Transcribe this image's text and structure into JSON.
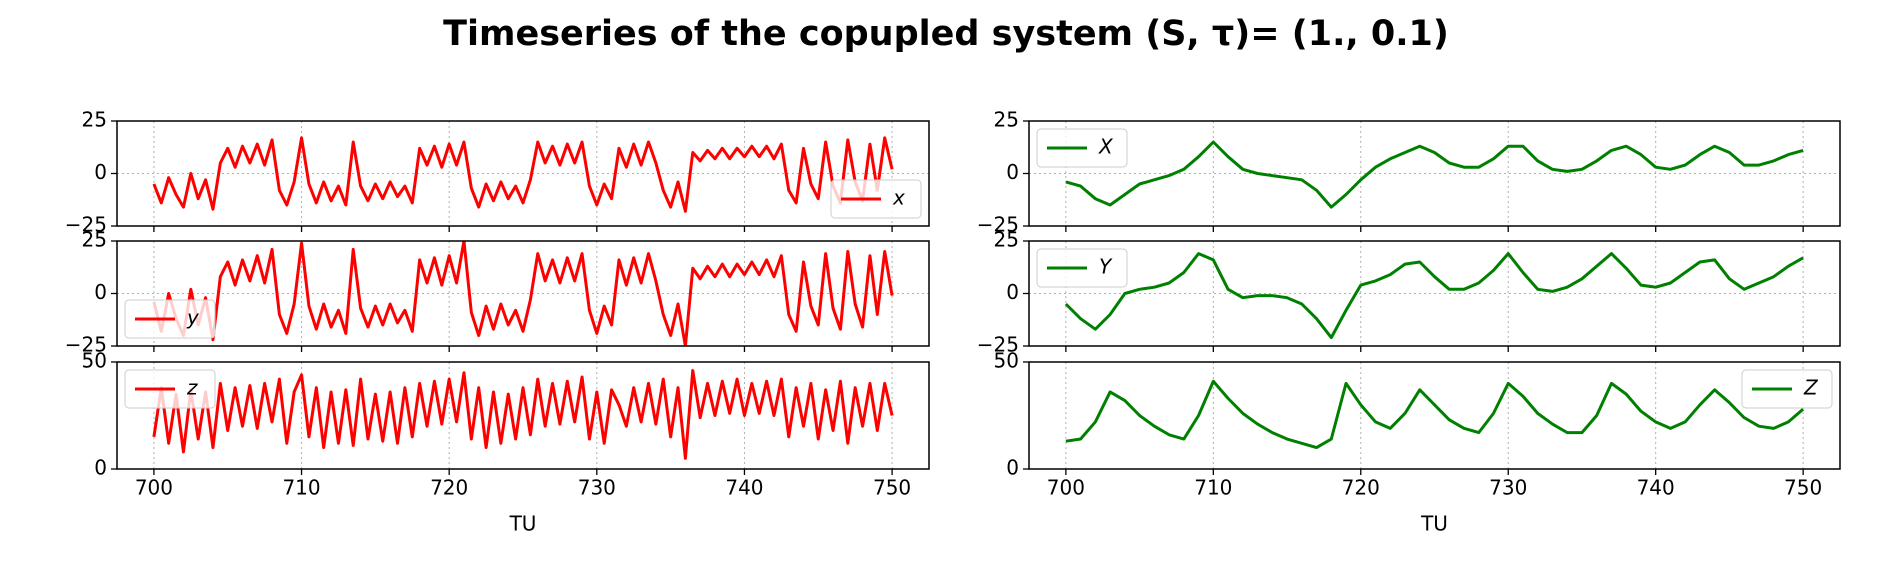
{
  "title": "Timeseries of the copupled system (S, τ)= (1., 0.1)",
  "chart_data": [
    {
      "type": "line",
      "legend": "lower right",
      "grid": true,
      "xlim": [
        697.5,
        752.5
      ],
      "ylim": [
        -25,
        25
      ],
      "yticks": [
        {
          "value": -25,
          "label": "−25"
        },
        0,
        25
      ],
      "x": [
        700,
        700.5,
        701,
        701.5,
        702,
        702.5,
        703,
        703.5,
        704,
        704.5,
        705,
        705.5,
        706,
        706.5,
        707,
        707.5,
        708,
        708.5,
        709,
        709.5,
        710,
        710.5,
        711,
        711.5,
        712,
        712.5,
        713,
        713.5,
        714,
        714.5,
        715,
        715.5,
        716,
        716.5,
        717,
        717.5,
        718,
        718.5,
        719,
        719.5,
        720,
        720.5,
        721,
        721.5,
        722,
        722.5,
        723,
        723.5,
        724,
        724.5,
        725,
        725.5,
        726,
        726.5,
        727,
        727.5,
        728,
        728.5,
        729,
        729.5,
        730,
        730.5,
        731,
        731.5,
        732,
        732.5,
        733,
        733.5,
        734,
        734.5,
        735,
        735.5,
        736,
        736.5,
        737,
        737.5,
        738,
        738.5,
        739,
        739.5,
        740,
        740.5,
        741,
        741.5,
        742,
        742.5,
        743,
        743.5,
        744,
        744.5,
        745,
        745.5,
        746,
        746.5,
        747,
        747.5,
        748,
        748.5,
        749,
        749.5,
        750
      ],
      "series": [
        {
          "name": "x",
          "color": "#ff0000",
          "values": [
            -5,
            -14,
            -2,
            -10,
            -16,
            0,
            -12,
            -3,
            -17,
            5,
            12,
            3,
            13,
            5,
            14,
            4,
            16,
            -8,
            -15,
            -4,
            17,
            -5,
            -14,
            -4,
            -13,
            -6,
            -15,
            15,
            -6,
            -13,
            -5,
            -12,
            -4,
            -11,
            -6,
            -14,
            12,
            4,
            13,
            3,
            14,
            4,
            15,
            -7,
            -16,
            -5,
            -13,
            -4,
            -12,
            -6,
            -14,
            -3,
            15,
            5,
            13,
            4,
            14,
            5,
            15,
            -6,
            -15,
            -5,
            -12,
            12,
            3,
            14,
            4,
            15,
            5,
            -8,
            -16,
            -4,
            -18,
            10,
            6,
            11,
            7,
            12,
            7,
            12,
            8,
            13,
            8,
            13,
            7,
            14,
            -8,
            -14,
            12,
            -5,
            -12,
            15,
            -6,
            -14,
            16,
            -4,
            -13,
            14,
            -8,
            17,
            2
          ]
        }
      ]
    },
    {
      "type": "line",
      "legend": "lower left",
      "grid": true,
      "xlim": [
        697.5,
        752.5
      ],
      "ylim": [
        -25,
        25
      ],
      "yticks": [
        {
          "value": -25,
          "label": "−25"
        },
        0,
        25
      ],
      "x": [
        700,
        700.5,
        701,
        701.5,
        702,
        702.5,
        703,
        703.5,
        704,
        704.5,
        705,
        705.5,
        706,
        706.5,
        707,
        707.5,
        708,
        708.5,
        709,
        709.5,
        710,
        710.5,
        711,
        711.5,
        712,
        712.5,
        713,
        713.5,
        714,
        714.5,
        715,
        715.5,
        716,
        716.5,
        717,
        717.5,
        718,
        718.5,
        719,
        719.5,
        720,
        720.5,
        721,
        721.5,
        722,
        722.5,
        723,
        723.5,
        724,
        724.5,
        725,
        725.5,
        726,
        726.5,
        727,
        727.5,
        728,
        728.5,
        729,
        729.5,
        730,
        730.5,
        731,
        731.5,
        732,
        732.5,
        733,
        733.5,
        734,
        734.5,
        735,
        735.5,
        736,
        736.5,
        737,
        737.5,
        738,
        738.5,
        739,
        739.5,
        740,
        740.5,
        741,
        741.5,
        742,
        742.5,
        743,
        743.5,
        744,
        744.5,
        745,
        745.5,
        746,
        746.5,
        747,
        747.5,
        748,
        748.5,
        749,
        749.5,
        750
      ],
      "series": [
        {
          "name": "y",
          "color": "#ff0000",
          "values": [
            -4,
            -18,
            0,
            -12,
            -20,
            2,
            -15,
            -2,
            -22,
            8,
            15,
            4,
            16,
            6,
            18,
            5,
            21,
            -10,
            -19,
            -5,
            24,
            -6,
            -17,
            -5,
            -16,
            -8,
            -19,
            21,
            -7,
            -16,
            -6,
            -15,
            -5,
            -14,
            -8,
            -18,
            16,
            5,
            17,
            4,
            18,
            5,
            25,
            -9,
            -20,
            -6,
            -17,
            -5,
            -15,
            -8,
            -18,
            -3,
            19,
            6,
            16,
            5,
            17,
            6,
            19,
            -8,
            -19,
            -6,
            -15,
            16,
            4,
            17,
            5,
            19,
            6,
            -10,
            -20,
            -5,
            -25,
            12,
            7,
            13,
            8,
            14,
            8,
            14,
            9,
            15,
            9,
            16,
            8,
            18,
            -10,
            -18,
            15,
            -6,
            -15,
            19,
            -7,
            -17,
            20,
            -5,
            -16,
            18,
            -10,
            20,
            -1
          ]
        }
      ]
    },
    {
      "type": "line",
      "legend": "upper left",
      "grid": true,
      "xlim": [
        697.5,
        752.5
      ],
      "ylim": [
        0,
        50
      ],
      "yticks": [
        0,
        50
      ],
      "xticks": [
        700,
        710,
        720,
        730,
        740,
        750
      ],
      "xlabel": "TU",
      "x": [
        700,
        700.5,
        701,
        701.5,
        702,
        702.5,
        703,
        703.5,
        704,
        704.5,
        705,
        705.5,
        706,
        706.5,
        707,
        707.5,
        708,
        708.5,
        709,
        709.5,
        710,
        710.5,
        711,
        711.5,
        712,
        712.5,
        713,
        713.5,
        714,
        714.5,
        715,
        715.5,
        716,
        716.5,
        717,
        717.5,
        718,
        718.5,
        719,
        719.5,
        720,
        720.5,
        721,
        721.5,
        722,
        722.5,
        723,
        723.5,
        724,
        724.5,
        725,
        725.5,
        726,
        726.5,
        727,
        727.5,
        728,
        728.5,
        729,
        729.5,
        730,
        730.5,
        731,
        731.5,
        732,
        732.5,
        733,
        733.5,
        734,
        734.5,
        735,
        735.5,
        736,
        736.5,
        737,
        737.5,
        738,
        738.5,
        739,
        739.5,
        740,
        740.5,
        741,
        741.5,
        742,
        742.5,
        743,
        743.5,
        744,
        744.5,
        745,
        745.5,
        746,
        746.5,
        747,
        747.5,
        748,
        748.5,
        749,
        749.5,
        750
      ],
      "series": [
        {
          "name": "z",
          "color": "#ff0000",
          "values": [
            15,
            38,
            12,
            35,
            8,
            37,
            14,
            36,
            10,
            40,
            18,
            38,
            20,
            39,
            19,
            40,
            22,
            42,
            12,
            36,
            44,
            15,
            38,
            10,
            36,
            12,
            37,
            11,
            42,
            14,
            35,
            13,
            36,
            12,
            38,
            15,
            40,
            20,
            41,
            21,
            42,
            22,
            45,
            14,
            38,
            10,
            36,
            12,
            35,
            14,
            38,
            16,
            42,
            20,
            40,
            21,
            41,
            22,
            43,
            14,
            36,
            12,
            37,
            30,
            20,
            38,
            22,
            40,
            21,
            42,
            15,
            38,
            5,
            46,
            24,
            40,
            25,
            41,
            26,
            42,
            25,
            40,
            26,
            41,
            25,
            42,
            15,
            38,
            20,
            40,
            14,
            37,
            18,
            41,
            12,
            38,
            20,
            40,
            18,
            40,
            25
          ]
        }
      ]
    },
    {
      "type": "line",
      "legend": "upper left",
      "grid": true,
      "xlim": [
        697.5,
        752.5
      ],
      "ylim": [
        -25,
        25
      ],
      "yticks": [
        {
          "value": -25,
          "label": "−25"
        },
        0,
        25
      ],
      "x": [
        700,
        701,
        702,
        703,
        704,
        705,
        706,
        707,
        708,
        709,
        710,
        711,
        712,
        713,
        714,
        715,
        716,
        717,
        718,
        719,
        720,
        721,
        722,
        723,
        724,
        725,
        726,
        727,
        728,
        729,
        730,
        731,
        732,
        733,
        734,
        735,
        736,
        737,
        738,
        739,
        740,
        741,
        742,
        743,
        744,
        745,
        746,
        747,
        748,
        749,
        750
      ],
      "series": [
        {
          "name": "X",
          "color": "#008000",
          "values": [
            -4,
            -6,
            -12,
            -15,
            -10,
            -5,
            -3,
            -1,
            2,
            8,
            15,
            8,
            2,
            0,
            -1,
            -2,
            -3,
            -8,
            -16,
            -10,
            -3,
            3,
            7,
            10,
            13,
            10,
            5,
            3,
            3,
            7,
            13,
            13,
            6,
            2,
            1,
            2,
            6,
            11,
            13,
            9,
            3,
            2,
            4,
            9,
            13,
            10,
            4,
            4,
            6,
            9,
            11
          ]
        }
      ]
    },
    {
      "type": "line",
      "legend": "upper left",
      "grid": true,
      "xlim": [
        697.5,
        752.5
      ],
      "ylim": [
        -25,
        25
      ],
      "yticks": [
        {
          "value": -25,
          "label": "−25"
        },
        0,
        25
      ],
      "x": [
        700,
        701,
        702,
        703,
        704,
        705,
        706,
        707,
        708,
        709,
        710,
        711,
        712,
        713,
        714,
        715,
        716,
        717,
        718,
        719,
        720,
        721,
        722,
        723,
        724,
        725,
        726,
        727,
        728,
        729,
        730,
        731,
        732,
        733,
        734,
        735,
        736,
        737,
        738,
        739,
        740,
        741,
        742,
        743,
        744,
        745,
        746,
        747,
        748,
        749,
        750
      ],
      "series": [
        {
          "name": "Y",
          "color": "#008000",
          "values": [
            -5,
            -12,
            -17,
            -10,
            0,
            2,
            3,
            5,
            10,
            19,
            16,
            2,
            -2,
            -1,
            -1,
            -2,
            -5,
            -12,
            -21,
            -8,
            4,
            6,
            9,
            14,
            15,
            8,
            2,
            2,
            5,
            11,
            19,
            10,
            2,
            1,
            3,
            7,
            13,
            19,
            12,
            4,
            3,
            5,
            10,
            15,
            16,
            7,
            2,
            5,
            8,
            13,
            17
          ]
        }
      ]
    },
    {
      "type": "line",
      "legend": "upper right",
      "grid": true,
      "xlim": [
        697.5,
        752.5
      ],
      "ylim": [
        0,
        50
      ],
      "yticks": [
        0,
        50
      ],
      "xticks": [
        700,
        710,
        720,
        730,
        740,
        750
      ],
      "xlabel": "TU",
      "x": [
        700,
        701,
        702,
        703,
        704,
        705,
        706,
        707,
        708,
        709,
        710,
        711,
        712,
        713,
        714,
        715,
        716,
        717,
        718,
        719,
        720,
        721,
        722,
        723,
        724,
        725,
        726,
        727,
        728,
        729,
        730,
        731,
        732,
        733,
        734,
        735,
        736,
        737,
        738,
        739,
        740,
        741,
        742,
        743,
        744,
        745,
        746,
        747,
        748,
        749,
        750
      ],
      "series": [
        {
          "name": "Z",
          "color": "#008000",
          "values": [
            13,
            14,
            22,
            36,
            32,
            25,
            20,
            16,
            14,
            25,
            41,
            33,
            26,
            21,
            17,
            14,
            12,
            10,
            14,
            40,
            30,
            22,
            19,
            26,
            37,
            30,
            23,
            19,
            17,
            26,
            40,
            34,
            26,
            21,
            17,
            17,
            25,
            40,
            35,
            27,
            22,
            19,
            22,
            30,
            37,
            31,
            24,
            20,
            19,
            22,
            28
          ]
        }
      ]
    }
  ]
}
